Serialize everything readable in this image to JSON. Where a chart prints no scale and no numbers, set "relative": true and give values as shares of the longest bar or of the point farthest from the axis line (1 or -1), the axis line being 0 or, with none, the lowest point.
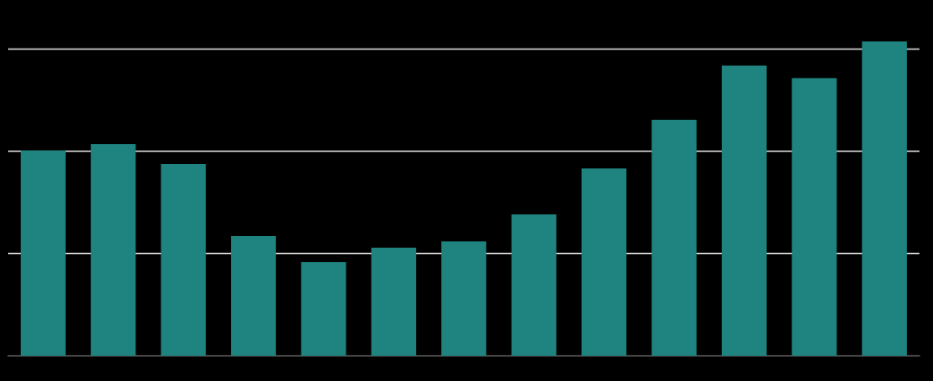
{
  "chart_data": {
    "type": "bar",
    "relative": true,
    "categories": [
      null,
      null,
      null,
      null,
      null,
      null,
      null,
      null,
      null,
      null,
      null,
      null,
      null
    ],
    "values": [
      0.653,
      0.673,
      0.61,
      0.381,
      0.298,
      0.344,
      0.364,
      0.45,
      0.596,
      0.751,
      0.923,
      0.883,
      1
    ],
    "color": "#1f8480",
    "grid": "y"
  }
}
